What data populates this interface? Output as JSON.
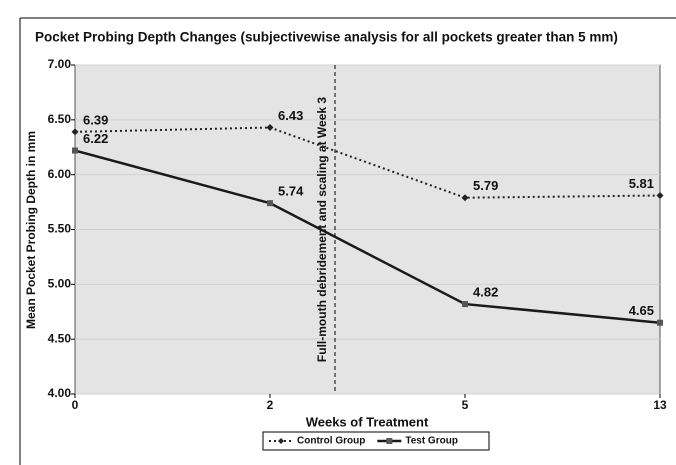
{
  "chart_data": {
    "type": "line",
    "title": "Pocket Probing Depth Changes (subjectivewise analysis for all pockets greater than 5 mm)",
    "x_label": "Weeks of Treatment",
    "y_label": "Mean Pocket Probing Depth in mm",
    "categories": [
      "0",
      "2",
      "5",
      "13"
    ],
    "series": [
      {
        "name": "Control Group",
        "color": "#222222",
        "values": [
          6.39,
          6.43,
          5.79,
          5.81
        ]
      },
      {
        "name": "Test Group",
        "color": "#1a1a1a",
        "values": [
          6.22,
          5.74,
          4.82,
          4.65
        ]
      }
    ],
    "ylim": [
      4,
      7
    ],
    "yticks": [
      {
        "value": 4,
        "label": "4.00"
      },
      {
        "value": 4.5,
        "label": "4.50"
      },
      {
        "value": 5,
        "label": "5.00"
      },
      {
        "value": 5.5,
        "label": "5.50"
      },
      {
        "value": 6,
        "label": "6.00"
      },
      {
        "value": 6.5,
        "label": "6.50"
      },
      {
        "value": 7,
        "label": "7.00"
      }
    ],
    "annotation": {
      "text": "Full-mouth debridement and scaling at Week 3",
      "x": 3
    },
    "grid": true,
    "legend": "bottom"
  }
}
